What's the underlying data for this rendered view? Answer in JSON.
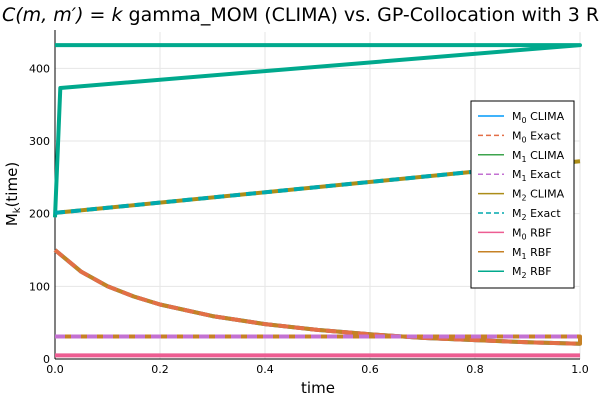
{
  "chart_data": {
    "type": "line",
    "title": "C(m, m') = k gamma_MOM (CLIMA) vs. GP-Collocation with 3 R",
    "title_parts": {
      "math": "C(m, m′) = k",
      "rest": " gamma_MOM (CLIMA) vs. GP-Collocation with 3 R"
    },
    "xlabel": "time",
    "ylabel": "M",
    "ylabel_sub": "k",
    "ylabel_suffix": "(time)",
    "xlim": [
      0,
      1
    ],
    "ylim": [
      0,
      450
    ],
    "x_ticks": [
      0.0,
      0.2,
      0.4,
      0.6,
      0.8,
      1.0
    ],
    "x_tick_labels": [
      "0.0",
      "0.2",
      "0.4",
      "0.6",
      "0.8",
      "1.0"
    ],
    "y_ticks": [
      0,
      100,
      200,
      300,
      400
    ],
    "y_tick_labels": [
      "0",
      "100",
      "200",
      "300",
      "400"
    ],
    "grid": true,
    "legend_position": "right",
    "series": [
      {
        "name": "M0 CLIMA",
        "base": "M",
        "sub": "0",
        "suffix": " CLIMA",
        "color": "#009AFA",
        "dash": "solid",
        "x": [
          0,
          0.05,
          0.1,
          0.15,
          0.2,
          0.3,
          0.4,
          0.5,
          0.6,
          0.7,
          0.8,
          0.9,
          1.0
        ],
        "y": [
          150,
          120,
          100,
          86,
          75,
          59,
          48,
          40,
          34,
          29,
          26,
          23,
          21
        ]
      },
      {
        "name": "M0 Exact",
        "base": "M",
        "sub": "0",
        "suffix": " Exact",
        "color": "#E36F47",
        "dash": "dash",
        "x": [
          0,
          0.05,
          0.1,
          0.15,
          0.2,
          0.3,
          0.4,
          0.5,
          0.6,
          0.7,
          0.8,
          0.9,
          1.0
        ],
        "y": [
          150,
          120,
          100,
          86,
          75,
          59,
          48,
          40,
          34,
          29,
          26,
          23,
          21
        ]
      },
      {
        "name": "M1 CLIMA",
        "base": "M",
        "sub": "1",
        "suffix": " CLIMA",
        "color": "#3EA44E",
        "dash": "solid",
        "x": [
          0,
          1.0
        ],
        "y": [
          31,
          31
        ]
      },
      {
        "name": "M1 Exact",
        "base": "M",
        "sub": "1",
        "suffix": " Exact",
        "color": "#C371D2",
        "dash": "dash",
        "x": [
          0,
          1.0
        ],
        "y": [
          31,
          31
        ]
      },
      {
        "name": "M2 CLIMA",
        "base": "M",
        "sub": "2",
        "suffix": " CLIMA",
        "color": "#AC8D18",
        "dash": "solid",
        "x": [
          0,
          1.0
        ],
        "y": [
          201,
          272
        ]
      },
      {
        "name": "M2 Exact",
        "base": "M",
        "sub": "2",
        "suffix": " Exact",
        "color": "#00A9AD",
        "dash": "dash",
        "x": [
          0,
          1.0
        ],
        "y": [
          201,
          272
        ]
      },
      {
        "name": "M0 RBF",
        "base": "M",
        "sub": "0",
        "suffix": " RBF",
        "color": "#ED5D92",
        "dash": "solid",
        "x": [
          0,
          1.0
        ],
        "y": [
          5,
          5
        ]
      },
      {
        "name": "M1 RBF",
        "base": "M",
        "sub": "1",
        "suffix": " RBF",
        "color": "#C68125",
        "dash": "solid",
        "x": [
          0,
          0.05,
          0.1,
          0.15,
          0.2,
          0.3,
          0.4,
          0.5,
          0.6,
          0.7,
          0.8,
          0.9,
          1.0,
          1.0,
          0.0
        ],
        "y": [
          150,
          120,
          100,
          86,
          75,
          59,
          48,
          40,
          34,
          29,
          26,
          23,
          21,
          31,
          31
        ]
      },
      {
        "name": "M2 RBF",
        "base": "M",
        "sub": "2",
        "suffix": " RBF",
        "color": "#00A98D",
        "dash": "solid",
        "x": [
          0,
          0.01,
          1.0,
          1.0,
          0.0
        ],
        "y": [
          195,
          373,
          432,
          432,
          432
        ]
      }
    ]
  }
}
